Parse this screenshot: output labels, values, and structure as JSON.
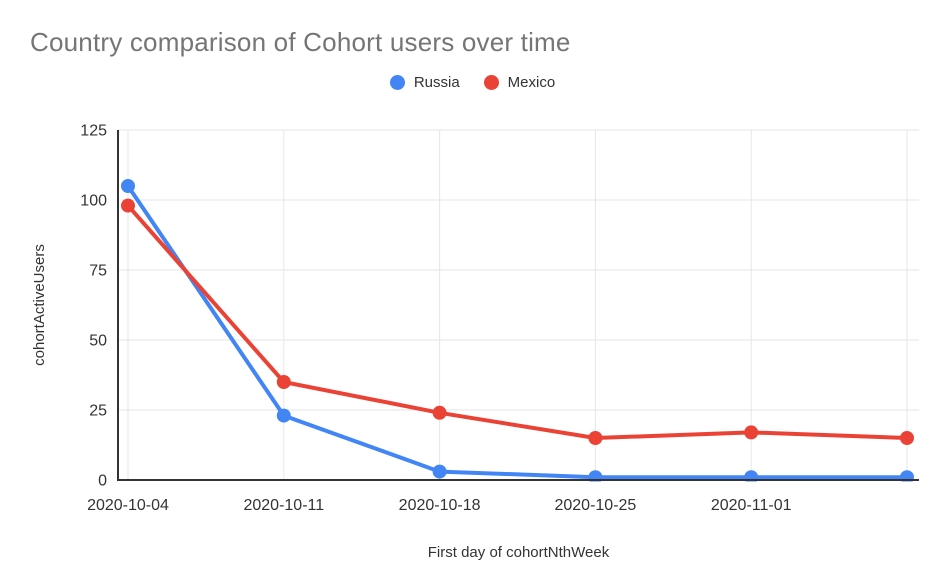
{
  "title": "Country comparison of Cohort users over time",
  "chart_data": {
    "type": "line",
    "title": "Country comparison of Cohort users over time",
    "xlabel": "First day of cohortNthWeek",
    "ylabel": "cohortActiveUsers",
    "x": [
      "2020-10-04",
      "2020-10-11",
      "2020-10-18",
      "2020-10-25",
      "2020-11-01",
      ""
    ],
    "series": [
      {
        "name": "Russia",
        "color": "#4285F4",
        "values": [
          105,
          23,
          3,
          1,
          1,
          1
        ]
      },
      {
        "name": "Mexico",
        "color": "#EA4335",
        "values": [
          98,
          35,
          24,
          15,
          17,
          15
        ]
      }
    ],
    "ylim": [
      0,
      125
    ],
    "yticks": [
      0,
      25,
      50,
      75,
      100,
      125
    ],
    "grid": true,
    "legend_position": "top",
    "colors": {
      "title_text": "#757575",
      "tick_text": "#333333",
      "axis_title_text": "#333333",
      "gridline": "#e6e6e6",
      "axis_line": "#333333",
      "background": "#ffffff"
    }
  }
}
